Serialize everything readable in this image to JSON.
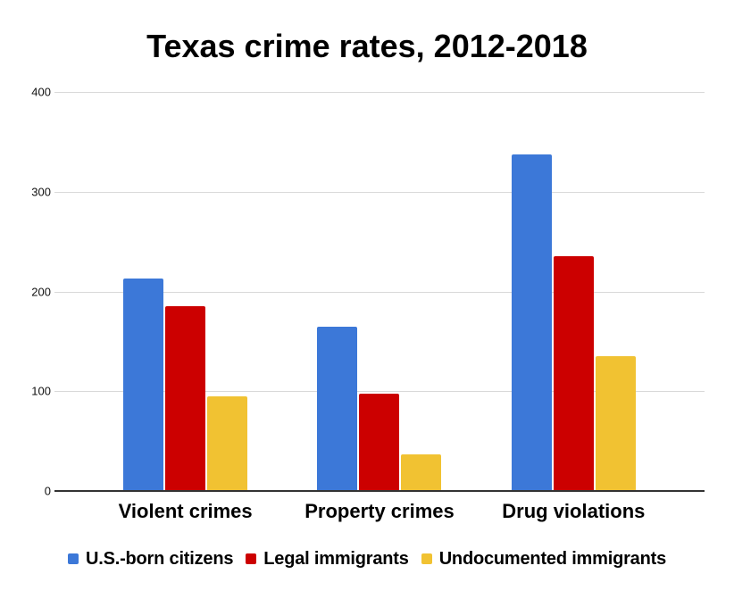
{
  "chart_data": {
    "type": "bar",
    "title": "Texas crime rates, 2012-2018",
    "categories": [
      "Violent crimes",
      "Property crimes",
      "Drug violations"
    ],
    "series": [
      {
        "name": "U.S.-born citizens",
        "color": "#3c78d8",
        "values": [
          213,
          165,
          337
        ]
      },
      {
        "name": "Legal immigrants",
        "color": "#cc0000",
        "values": [
          185,
          98,
          235
        ]
      },
      {
        "name": "Undocumented immigrants",
        "color": "#f1c232",
        "values": [
          95,
          37,
          135
        ]
      }
    ],
    "xlabel": "",
    "ylabel": "",
    "ylim": [
      0,
      400
    ],
    "y_ticks": [
      400,
      300,
      200,
      100,
      0
    ],
    "grid": true,
    "legend_position": "bottom"
  },
  "colors": {
    "gridline": "#d9d9d9",
    "axis_line": "#333333",
    "title_text": "#000000",
    "tick_text": "#111111"
  }
}
